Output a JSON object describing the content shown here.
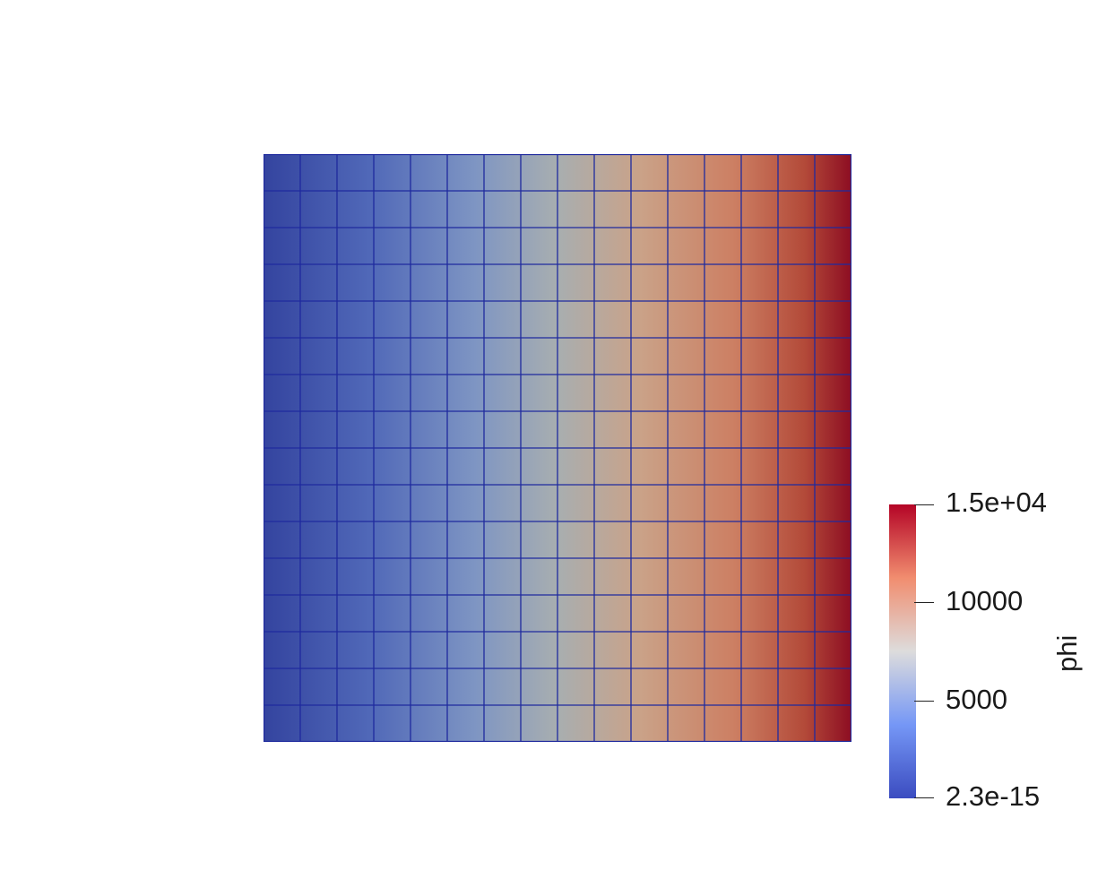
{
  "mesh": {
    "field": "phi",
    "cells_x": 16,
    "cells_y": 16,
    "value_min": 2.3e-15,
    "value_max": 15000,
    "gradient_direction": "left-to-right",
    "grid_line_color": "#1f2a9e"
  },
  "colorbar": {
    "title": "phi",
    "colormap": "coolwarm",
    "colors": [
      "#3b4cc0",
      "#7597f6",
      "#dddcdc",
      "#f18d6f",
      "#b40426"
    ],
    "ticks": [
      {
        "value": 15000,
        "label": "1.5e+04"
      },
      {
        "value": 10000,
        "label": "10000"
      },
      {
        "value": 5000,
        "label": "5000"
      },
      {
        "value": 2.3e-15,
        "label": "2.3e-15"
      }
    ]
  }
}
